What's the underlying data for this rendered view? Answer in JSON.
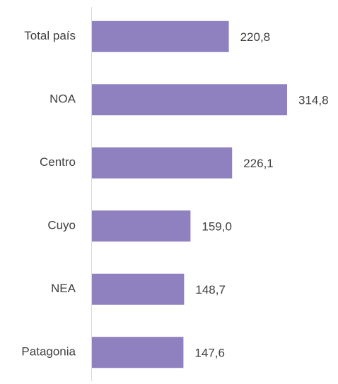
{
  "chart_data": {
    "type": "bar",
    "orientation": "horizontal",
    "categories": [
      "Total país",
      "NOA",
      "Centro",
      "Cuyo",
      "NEA",
      "Patagonia"
    ],
    "values": [
      220.8,
      314.8,
      226.1,
      159.0,
      148.7,
      147.6
    ],
    "value_labels": [
      "220,8",
      "314,8",
      "226,1",
      "159,0",
      "148,7",
      "147,6"
    ],
    "color": "#8f80c0"
  }
}
